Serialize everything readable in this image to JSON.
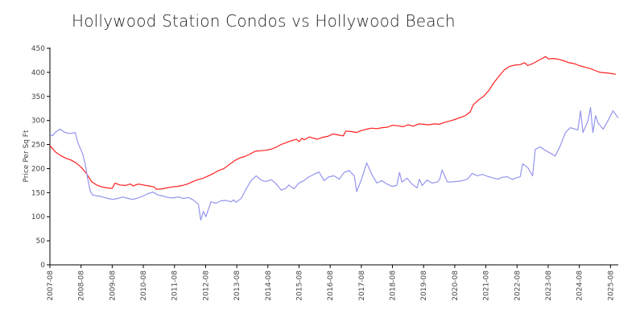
{
  "colors": {
    "red_series": "#ff2020",
    "blue_series": "#9494ee",
    "axis": "#000000"
  },
  "chart_data": {
    "type": "line",
    "title": "Hollywood Station Condos vs Hollywood Beach",
    "xlabel": "",
    "ylabel": "Price Per Sq Ft",
    "ylim": [
      0,
      450
    ],
    "yticks": [
      0,
      50,
      100,
      150,
      200,
      250,
      300,
      350,
      400,
      450
    ],
    "xlim": [
      2007.58,
      2025.83
    ],
    "xticks": [
      "2007-08",
      "2008-08",
      "2009-08",
      "2010-08",
      "2011-08",
      "2012-08",
      "2013-08",
      "2014-08",
      "2015-08",
      "2016-08",
      "2017-08",
      "2018-08",
      "2019-08",
      "2020-08",
      "2021-08",
      "2022-08",
      "2023-08",
      "2024-08",
      "2025-08"
    ],
    "grid": false,
    "series": [
      {
        "color": "#ff2020",
        "points": [
          [
            2007.58,
            248
          ],
          [
            2007.75,
            235
          ],
          [
            2007.92,
            227
          ],
          [
            2008.08,
            222
          ],
          [
            2008.25,
            218
          ],
          [
            2008.42,
            212
          ],
          [
            2008.58,
            203
          ],
          [
            2008.75,
            190
          ],
          [
            2008.92,
            173
          ],
          [
            2009.08,
            166
          ],
          [
            2009.25,
            162
          ],
          [
            2009.42,
            160
          ],
          [
            2009.58,
            159
          ],
          [
            2009.67,
            170
          ],
          [
            2009.83,
            166
          ],
          [
            2010.0,
            165
          ],
          [
            2010.17,
            168
          ],
          [
            2010.25,
            164
          ],
          [
            2010.42,
            168
          ],
          [
            2010.58,
            166
          ],
          [
            2010.75,
            164
          ],
          [
            2010.92,
            162
          ],
          [
            2011.0,
            157
          ],
          [
            2011.17,
            158
          ],
          [
            2011.33,
            160
          ],
          [
            2011.5,
            162
          ],
          [
            2011.67,
            163
          ],
          [
            2011.83,
            165
          ],
          [
            2012.0,
            168
          ],
          [
            2012.17,
            173
          ],
          [
            2012.33,
            177
          ],
          [
            2012.5,
            180
          ],
          [
            2012.67,
            185
          ],
          [
            2012.83,
            190
          ],
          [
            2013.0,
            196
          ],
          [
            2013.17,
            200
          ],
          [
            2013.33,
            208
          ],
          [
            2013.5,
            216
          ],
          [
            2013.67,
            222
          ],
          [
            2013.83,
            225
          ],
          [
            2014.0,
            230
          ],
          [
            2014.17,
            236
          ],
          [
            2014.33,
            237
          ],
          [
            2014.5,
            238
          ],
          [
            2014.67,
            240
          ],
          [
            2014.83,
            244
          ],
          [
            2015.0,
            250
          ],
          [
            2015.17,
            254
          ],
          [
            2015.33,
            258
          ],
          [
            2015.5,
            261
          ],
          [
            2015.58,
            256
          ],
          [
            2015.67,
            263
          ],
          [
            2015.75,
            260
          ],
          [
            2015.92,
            266
          ],
          [
            2016.0,
            264
          ],
          [
            2016.17,
            261
          ],
          [
            2016.33,
            265
          ],
          [
            2016.5,
            267
          ],
          [
            2016.67,
            272
          ],
          [
            2016.83,
            270
          ],
          [
            2017.0,
            268
          ],
          [
            2017.08,
            278
          ],
          [
            2017.25,
            277
          ],
          [
            2017.42,
            275
          ],
          [
            2017.58,
            279
          ],
          [
            2017.75,
            282
          ],
          [
            2017.92,
            284
          ],
          [
            2018.08,
            283
          ],
          [
            2018.25,
            285
          ],
          [
            2018.42,
            286
          ],
          [
            2018.58,
            290
          ],
          [
            2018.75,
            289
          ],
          [
            2018.92,
            287
          ],
          [
            2019.08,
            291
          ],
          [
            2019.25,
            288
          ],
          [
            2019.42,
            293
          ],
          [
            2019.58,
            292
          ],
          [
            2019.75,
            291
          ],
          [
            2019.92,
            293
          ],
          [
            2020.08,
            292
          ],
          [
            2020.25,
            296
          ],
          [
            2020.42,
            299
          ],
          [
            2020.58,
            302
          ],
          [
            2020.75,
            306
          ],
          [
            2020.92,
            310
          ],
          [
            2021.08,
            318
          ],
          [
            2021.17,
            332
          ],
          [
            2021.33,
            342
          ],
          [
            2021.5,
            350
          ],
          [
            2021.67,
            362
          ],
          [
            2021.83,
            378
          ],
          [
            2022.0,
            392
          ],
          [
            2022.17,
            405
          ],
          [
            2022.33,
            412
          ],
          [
            2022.5,
            415
          ],
          [
            2022.67,
            416
          ],
          [
            2022.83,
            420
          ],
          [
            2022.92,
            414
          ],
          [
            2023.08,
            418
          ],
          [
            2023.25,
            424
          ],
          [
            2023.42,
            430
          ],
          [
            2023.5,
            433
          ],
          [
            2023.58,
            428
          ],
          [
            2023.75,
            429
          ],
          [
            2023.92,
            427
          ],
          [
            2024.08,
            424
          ],
          [
            2024.25,
            420
          ],
          [
            2024.42,
            418
          ],
          [
            2024.58,
            414
          ],
          [
            2024.75,
            411
          ],
          [
            2024.92,
            408
          ],
          [
            2025.08,
            404
          ],
          [
            2025.25,
            400
          ],
          [
            2025.42,
            399
          ],
          [
            2025.58,
            398
          ],
          [
            2025.75,
            396
          ]
        ]
      },
      {
        "color": "#9494ee",
        "points": [
          [
            2007.58,
            272
          ],
          [
            2007.67,
            268
          ],
          [
            2007.75,
            275
          ],
          [
            2007.92,
            282
          ],
          [
            2008.08,
            275
          ],
          [
            2008.25,
            273
          ],
          [
            2008.42,
            275
          ],
          [
            2008.5,
            255
          ],
          [
            2008.67,
            230
          ],
          [
            2008.75,
            210
          ],
          [
            2008.83,
            180
          ],
          [
            2008.92,
            153
          ],
          [
            2009.0,
            145
          ],
          [
            2009.17,
            143
          ],
          [
            2009.33,
            141
          ],
          [
            2009.5,
            138
          ],
          [
            2009.67,
            136
          ],
          [
            2009.83,
            138
          ],
          [
            2010.0,
            141
          ],
          [
            2010.17,
            138
          ],
          [
            2010.33,
            136
          ],
          [
            2010.5,
            139
          ],
          [
            2010.67,
            143
          ],
          [
            2010.83,
            148
          ],
          [
            2011.0,
            151
          ],
          [
            2011.17,
            145
          ],
          [
            2011.33,
            143
          ],
          [
            2011.5,
            140
          ],
          [
            2011.67,
            139
          ],
          [
            2011.83,
            141
          ],
          [
            2012.0,
            138
          ],
          [
            2012.17,
            140
          ],
          [
            2012.33,
            135
          ],
          [
            2012.5,
            126
          ],
          [
            2012.58,
            93
          ],
          [
            2012.67,
            111
          ],
          [
            2012.75,
            100
          ],
          [
            2012.92,
            131
          ],
          [
            2013.08,
            128
          ],
          [
            2013.25,
            133
          ],
          [
            2013.42,
            134
          ],
          [
            2013.58,
            131
          ],
          [
            2013.67,
            135
          ],
          [
            2013.75,
            130
          ],
          [
            2013.92,
            138
          ],
          [
            2014.08,
            157
          ],
          [
            2014.25,
            175
          ],
          [
            2014.42,
            185
          ],
          [
            2014.58,
            176
          ],
          [
            2014.75,
            173
          ],
          [
            2014.92,
            177
          ],
          [
            2015.08,
            168
          ],
          [
            2015.25,
            155
          ],
          [
            2015.42,
            160
          ],
          [
            2015.5,
            166
          ],
          [
            2015.67,
            158
          ],
          [
            2015.83,
            170
          ],
          [
            2016.0,
            175
          ],
          [
            2016.17,
            183
          ],
          [
            2016.33,
            188
          ],
          [
            2016.5,
            193
          ],
          [
            2016.67,
            175
          ],
          [
            2016.83,
            183
          ],
          [
            2017.0,
            185
          ],
          [
            2017.17,
            178
          ],
          [
            2017.33,
            192
          ],
          [
            2017.5,
            196
          ],
          [
            2017.67,
            185
          ],
          [
            2017.75,
            152
          ],
          [
            2017.92,
            180
          ],
          [
            2018.08,
            212
          ],
          [
            2018.25,
            188
          ],
          [
            2018.42,
            170
          ],
          [
            2018.58,
            175
          ],
          [
            2018.75,
            168
          ],
          [
            2018.92,
            163
          ],
          [
            2019.08,
            165
          ],
          [
            2019.17,
            192
          ],
          [
            2019.25,
            172
          ],
          [
            2019.42,
            180
          ],
          [
            2019.58,
            168
          ],
          [
            2019.75,
            160
          ],
          [
            2019.83,
            178
          ],
          [
            2019.92,
            165
          ],
          [
            2020.08,
            176
          ],
          [
            2020.25,
            170
          ],
          [
            2020.42,
            172
          ],
          [
            2020.5,
            178
          ],
          [
            2020.58,
            197
          ],
          [
            2020.75,
            173
          ],
          [
            2020.83,
            172
          ],
          [
            2021.0,
            173
          ],
          [
            2021.17,
            174
          ],
          [
            2021.25,
            175
          ],
          [
            2021.42,
            178
          ],
          [
            2021.58,
            190
          ],
          [
            2021.75,
            185
          ],
          [
            2021.92,
            188
          ],
          [
            2022.08,
            184
          ],
          [
            2022.25,
            181
          ],
          [
            2022.42,
            178
          ],
          [
            2022.58,
            182
          ],
          [
            2022.75,
            183
          ],
          [
            2022.92,
            177
          ],
          [
            2023.0,
            180
          ],
          [
            2023.17,
            183
          ],
          [
            2023.25,
            210
          ],
          [
            2023.42,
            202
          ],
          [
            2023.58,
            185
          ],
          [
            2023.67,
            240
          ],
          [
            2023.83,
            245
          ],
          [
            2024.0,
            238
          ],
          [
            2024.17,
            232
          ],
          [
            2024.33,
            226
          ],
          [
            2024.5,
            248
          ],
          [
            2024.67,
            275
          ],
          [
            2024.83,
            285
          ],
          [
            2025.0,
            282
          ],
          [
            2025.08,
            280
          ],
          [
            2025.17,
            320
          ],
          [
            2025.25,
            275
          ],
          [
            2025.42,
            300
          ],
          [
            2025.5,
            327
          ],
          [
            2025.58,
            275
          ],
          [
            2025.67,
            310
          ],
          [
            2025.75,
            295
          ],
          [
            2025.92,
            282
          ],
          [
            2026.08,
            300
          ],
          [
            2026.25,
            320
          ],
          [
            2026.42,
            305
          ]
        ]
      }
    ]
  }
}
